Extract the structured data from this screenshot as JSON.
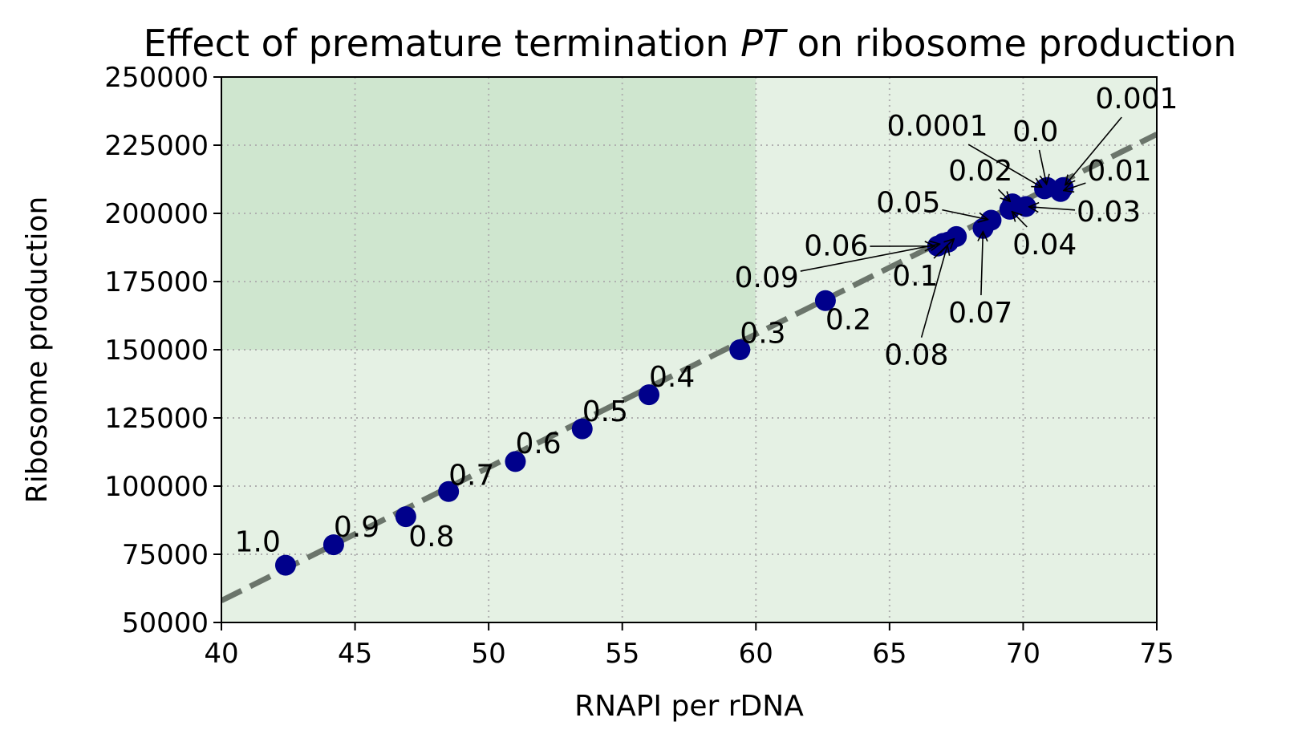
{
  "chart_data": {
    "type": "scatter",
    "title_prefix": "Effect of premature termination ",
    "title_italic": "PT",
    "title_suffix": " on ribosome production",
    "xlabel": "RNAPI per rDNA",
    "ylabel": "Ribosome production",
    "xlim": [
      40,
      75
    ],
    "ylim": [
      50000,
      250000
    ],
    "xticks": [
      40,
      45,
      50,
      55,
      60,
      65,
      70,
      75
    ],
    "yticks": [
      50000,
      75000,
      100000,
      125000,
      150000,
      175000,
      200000,
      225000,
      250000
    ],
    "grid": true,
    "colors": {
      "points": "#00008b",
      "trend": "#6b756b",
      "region_light": "#e5f1e4",
      "region_dark": "#cfe6cf",
      "grid": "#b0b0b0"
    },
    "regions": [
      {
        "x": [
          40,
          75
        ],
        "y": [
          50000,
          150000
        ],
        "shade": "light"
      },
      {
        "x": [
          40,
          60
        ],
        "y": [
          150000,
          250000
        ],
        "shade": "dark"
      },
      {
        "x": [
          60,
          75
        ],
        "y": [
          150000,
          250000
        ],
        "shade": "light"
      }
    ],
    "trendline": {
      "x": [
        40,
        75
      ],
      "y": [
        58000,
        229000
      ],
      "style": "dashed"
    },
    "points": [
      {
        "label": "1.0",
        "x": 42.4,
        "y": 71000,
        "tx": 40.5,
        "ty": 76000,
        "arrow": false
      },
      {
        "label": "0.9",
        "x": 44.2,
        "y": 78500,
        "tx": 44.2,
        "ty": 81500,
        "arrow": false
      },
      {
        "label": "0.8",
        "x": 46.9,
        "y": 88800,
        "tx": 47.0,
        "ty": 78000,
        "arrow": false
      },
      {
        "label": "0.7",
        "x": 48.5,
        "y": 98000,
        "tx": 48.5,
        "ty": 100500,
        "arrow": false
      },
      {
        "label": "0.6",
        "x": 51.0,
        "y": 109000,
        "tx": 51.0,
        "ty": 112000,
        "arrow": false
      },
      {
        "label": "0.5",
        "x": 53.5,
        "y": 121000,
        "tx": 53.5,
        "ty": 123800,
        "arrow": false
      },
      {
        "label": "0.4",
        "x": 56.0,
        "y": 133500,
        "tx": 56.0,
        "ty": 136500,
        "arrow": false
      },
      {
        "label": "0.3",
        "x": 59.4,
        "y": 150000,
        "tx": 59.4,
        "ty": 152500,
        "arrow": false
      },
      {
        "label": "0.2",
        "x": 62.6,
        "y": 168000,
        "tx": 62.6,
        "ty": 157500,
        "arrow": false
      },
      {
        "label": "0.1",
        "x": 67.5,
        "y": 191500,
        "tx": 65.1,
        "ty": 173500,
        "arrow": true
      },
      {
        "label": "0.09",
        "x": 67.0,
        "y": 189000,
        "tx": 59.2,
        "ty": 173000,
        "arrow": true
      },
      {
        "label": "0.08",
        "x": 67.2,
        "y": 189500,
        "tx": 64.8,
        "ty": 144500,
        "arrow": true
      },
      {
        "label": "0.07",
        "x": 68.5,
        "y": 194500,
        "tx": 67.2,
        "ty": 160000,
        "arrow": true
      },
      {
        "label": "0.06",
        "x": 66.8,
        "y": 188000,
        "tx": 61.8,
        "ty": 184500,
        "arrow": true
      },
      {
        "label": "0.05",
        "x": 68.8,
        "y": 197500,
        "tx": 64.5,
        "ty": 200500,
        "arrow": true
      },
      {
        "label": "0.04",
        "x": 69.5,
        "y": 201500,
        "tx": 69.6,
        "ty": 185000,
        "arrow": true
      },
      {
        "label": "0.03",
        "x": 70.1,
        "y": 202500,
        "tx": 72.0,
        "ty": 197000,
        "arrow": true
      },
      {
        "label": "0.02",
        "x": 69.6,
        "y": 203500,
        "tx": 67.2,
        "ty": 212000,
        "arrow": true
      },
      {
        "label": "0.01",
        "x": 71.4,
        "y": 208000,
        "tx": 72.4,
        "ty": 212000,
        "arrow": true
      },
      {
        "label": "0.0001",
        "x": 70.8,
        "y": 209000,
        "tx": 64.9,
        "ty": 228500,
        "arrow": true
      },
      {
        "label": "0.0",
        "x": 70.9,
        "y": 209500,
        "tx": 69.6,
        "ty": 226500,
        "arrow": true
      },
      {
        "label": "0.001",
        "x": 71.5,
        "y": 209500,
        "tx": 72.7,
        "ty": 238500,
        "arrow": true
      }
    ]
  }
}
